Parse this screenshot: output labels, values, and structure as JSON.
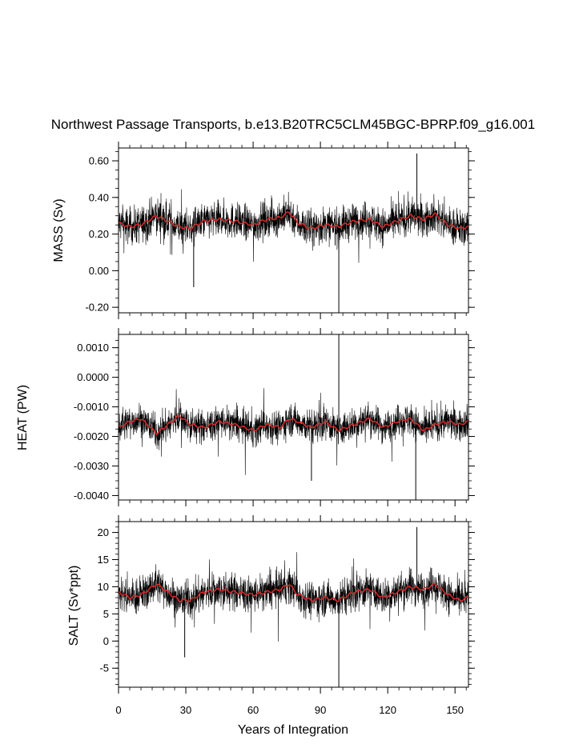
{
  "chart_data": {
    "type": "line",
    "title": "Northwest Passage Transports, b.e13.B20TRC5CLM45BGC-BPRP.f09_g16.001",
    "xlabel": "Years of Integration",
    "xlim": [
      0,
      156
    ],
    "xticks": [
      0,
      30,
      60,
      90,
      120,
      150
    ],
    "xtick_labels": [
      "0",
      "30",
      "60",
      "90",
      "120",
      "150"
    ],
    "series_styles": {
      "monthly_color": "#000000",
      "smoothed_color": "#d62728"
    },
    "panels": [
      {
        "name": "mass",
        "ylabel": "MASS (Sv)",
        "ylim": [
          -0.23,
          0.67
        ],
        "yticks": [
          -0.2,
          0.0,
          0.2,
          0.4,
          0.6
        ],
        "ytick_labels": [
          "-0.20",
          "0.00",
          "0.20",
          "0.40",
          "0.60"
        ],
        "yminor_step": 0.05,
        "mean": 0.26,
        "noise": 0.09,
        "smooth_years": [
          0,
          5,
          10,
          17,
          22,
          27,
          32,
          38,
          45,
          52,
          60,
          66,
          72,
          76,
          80,
          86,
          92,
          98,
          105,
          112,
          118,
          124,
          130,
          136,
          141,
          147,
          152,
          156
        ],
        "smooth_values": [
          0.26,
          0.24,
          0.25,
          0.3,
          0.27,
          0.24,
          0.23,
          0.27,
          0.28,
          0.27,
          0.25,
          0.28,
          0.29,
          0.32,
          0.26,
          0.23,
          0.25,
          0.24,
          0.27,
          0.28,
          0.24,
          0.27,
          0.3,
          0.28,
          0.31,
          0.25,
          0.23,
          0.24
        ],
        "spikes": [
          {
            "x": 98.2,
            "y": -0.23
          },
          {
            "x": 133.0,
            "y": 0.64
          },
          {
            "x": 33.5,
            "y": -0.09
          }
        ]
      },
      {
        "name": "heat",
        "ylabel": "HEAT (PW)",
        "ylim": [
          -0.00415,
          0.00145
        ],
        "yticks": [
          -0.004,
          -0.003,
          -0.002,
          -0.001,
          0.0,
          0.001
        ],
        "ytick_labels": [
          "-0.0040",
          "-0.0030",
          "-0.0020",
          "-0.0010",
          "0.0000",
          "0.0010"
        ],
        "yminor_step": 0.00025,
        "mean": -0.0016,
        "noise": 0.0005,
        "smooth_years": [
          0,
          5,
          10,
          17,
          22,
          27,
          32,
          38,
          45,
          52,
          60,
          66,
          72,
          76,
          80,
          86,
          92,
          98,
          105,
          112,
          118,
          124,
          130,
          136,
          141,
          147,
          152,
          156
        ],
        "smooth_values": [
          -0.0017,
          -0.0015,
          -0.0014,
          -0.0019,
          -0.0016,
          -0.0013,
          -0.0016,
          -0.0017,
          -0.0015,
          -0.0016,
          -0.0018,
          -0.0016,
          -0.0017,
          -0.0014,
          -0.0015,
          -0.0017,
          -0.0015,
          -0.0018,
          -0.0016,
          -0.0014,
          -0.0017,
          -0.0015,
          -0.0014,
          -0.0018,
          -0.0016,
          -0.0015,
          -0.0016,
          -0.0015
        ],
        "spikes": [
          {
            "x": 98.2,
            "y": 0.00145
          },
          {
            "x": 132.5,
            "y": -0.00415
          },
          {
            "x": 86.0,
            "y": -0.0035
          }
        ]
      },
      {
        "name": "salt",
        "ylabel": "SALT (Sv*ppt)",
        "ylim": [
          -8.5,
          22
        ],
        "yticks": [
          -5,
          0,
          5,
          10,
          15,
          20
        ],
        "ytick_labels": [
          "-5",
          "0",
          "5",
          "10",
          "15",
          "20"
        ],
        "yminor_step": 1,
        "mean": 8.7,
        "noise": 3.0,
        "smooth_years": [
          0,
          5,
          10,
          17,
          22,
          27,
          32,
          38,
          45,
          52,
          60,
          66,
          72,
          76,
          80,
          86,
          92,
          98,
          105,
          112,
          118,
          124,
          130,
          136,
          141,
          147,
          152,
          156
        ],
        "smooth_values": [
          9.0,
          8.0,
          8.5,
          10.5,
          9.0,
          7.5,
          7.5,
          9.0,
          9.5,
          9.0,
          8.5,
          9.0,
          9.5,
          10.5,
          8.5,
          7.5,
          8.0,
          7.5,
          9.0,
          9.5,
          8.0,
          9.0,
          10.0,
          9.5,
          10.5,
          8.5,
          7.5,
          8.0
        ],
        "spikes": [
          {
            "x": 98.2,
            "y": -8.5
          },
          {
            "x": 133.0,
            "y": 21.0
          },
          {
            "x": 29.5,
            "y": -3.0
          }
        ]
      }
    ]
  }
}
